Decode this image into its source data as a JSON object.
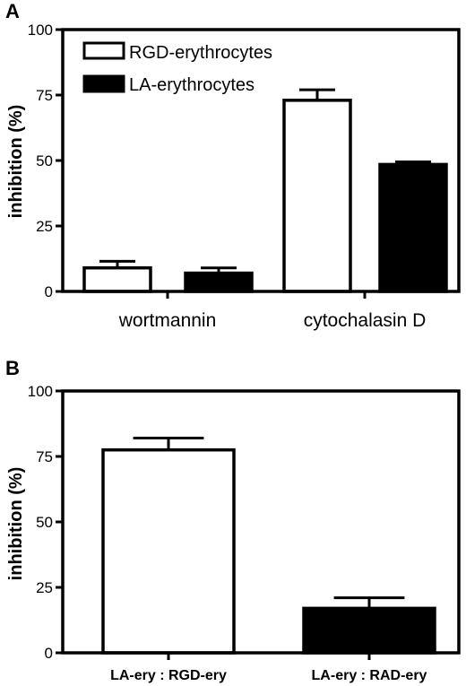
{
  "chart_data": [
    {
      "panel": "A",
      "type": "bar",
      "categories": [
        "wortmannin",
        "cytochalasin D"
      ],
      "series": [
        {
          "name": "RGD-erythrocytes",
          "values": [
            9,
            73
          ],
          "errors": [
            2.5,
            4
          ],
          "color": "#ffffff"
        },
        {
          "name": "LA-erythrocytes",
          "values": [
            7,
            48.5
          ],
          "errors": [
            2,
            1
          ],
          "color": "#000000"
        }
      ],
      "ylabel": "inhibition (%)",
      "ylim": [
        0,
        100
      ],
      "yticks": [
        "0",
        "25",
        "50",
        "75",
        "100"
      ],
      "legend": "top-left"
    },
    {
      "panel": "B",
      "type": "bar",
      "categories": [
        "LA-ery : RGD-ery",
        "LA-ery : RAD-ery"
      ],
      "values": [
        77.5,
        17
      ],
      "errors": [
        4.5,
        4
      ],
      "colors": [
        "#ffffff",
        "#000000"
      ],
      "ylabel": "inhibition (%)",
      "ylim": [
        0,
        100
      ],
      "yticks": [
        "0",
        "25",
        "50",
        "75",
        "100"
      ]
    }
  ]
}
